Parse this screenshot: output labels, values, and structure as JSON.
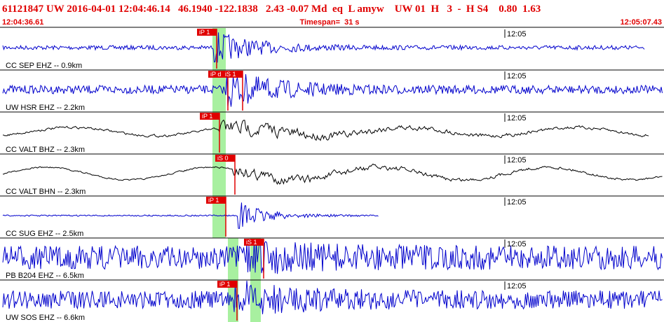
{
  "header": {
    "event": "61121847 UW 2016-04-01 12:04:46.14   46.1940 -122.1838   2.43 -0.07 Md  eq  L amyw    UW 01  H   3  -  H S4    0.80  1.63",
    "start_time": "12:04:36.61",
    "timespan": "Timespan=  31 s",
    "end_time": "12:05:07.43"
  },
  "traces": [
    {
      "label": "CC SEP EHZ -- 0.9km",
      "time_mark": "12:05",
      "picks": [
        "iP 1"
      ]
    },
    {
      "label": "UW HSR EHZ -- 2.2km",
      "time_mark": "12:05",
      "picks": [
        "iP d",
        "iS 1"
      ]
    },
    {
      "label": "CC VALT BHZ -- 2.3km",
      "time_mark": "12:05",
      "picks": [
        "iP 1"
      ]
    },
    {
      "label": "CC VALT BHN -- 2.3km",
      "time_mark": "12:05",
      "picks": [
        "iS 0"
      ]
    },
    {
      "label": "CC SUG EHZ -- 2.5km",
      "time_mark": "12:05",
      "picks": [
        "iP 1"
      ]
    },
    {
      "label": "PB B204 EHZ -- 6.5km",
      "time_mark": "12:05",
      "picks": [
        "iS 1"
      ]
    },
    {
      "label": "UW SOS EHZ -- 6.6km",
      "time_mark": "12:05",
      "picks": [
        "iP 1"
      ]
    }
  ]
}
